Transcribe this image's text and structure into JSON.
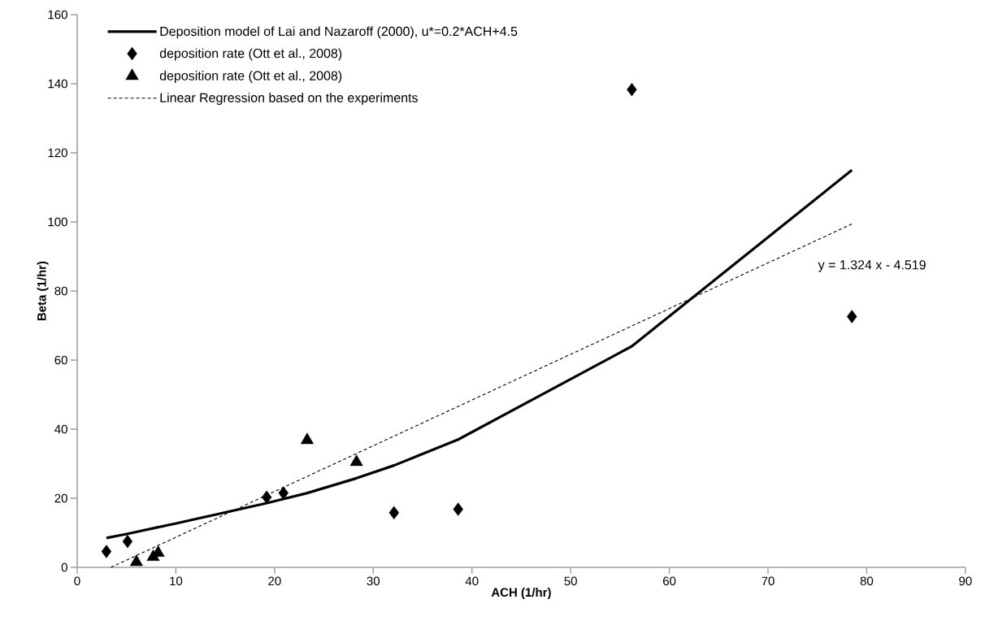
{
  "chart_data": {
    "type": "line",
    "xlabel": "ACH (1/hr)",
    "ylabel": "Beta (1/hr)",
    "xlim": [
      0,
      90
    ],
    "xticks": [
      0,
      10,
      20,
      30,
      40,
      50,
      60,
      70,
      80,
      90
    ],
    "ylim": [
      0,
      160
    ],
    "yticks": [
      0,
      20,
      40,
      60,
      80,
      100,
      120,
      140,
      160
    ],
    "legend": "top left",
    "annotations": [
      "y  = 1.324 x - 4.519"
    ],
    "series": [
      {
        "name": "Deposition model of Lai and Nazaroff (2000), u*=0.2*ACH+4.5",
        "color": "#000000",
        "marker": "none",
        "line_style": "solid",
        "x": [
          2.96,
          5.1,
          8,
          10,
          19.2,
          23.3,
          28.3,
          32.1,
          38.6,
          56.2,
          78.5
        ],
        "values": [
          8.5,
          9.7,
          11.5,
          12.7,
          18.6,
          21.5,
          25.8,
          29.5,
          37,
          64,
          115
        ]
      },
      {
        "name": "deposition rate (Ott et al., 2008)",
        "type": "scatter",
        "color": "#000000",
        "marker": "diamond",
        "x": [
          2.96,
          5.1,
          19.2,
          20.9,
          32.1,
          38.6,
          56.2,
          78.5
        ],
        "values": [
          4.6,
          7.5,
          20.3,
          21.5,
          15.8,
          16.8,
          138.3,
          72.6
        ]
      },
      {
        "name": "deposition rate (Ott et al., 2008)",
        "type": "scatter",
        "color": "#000000",
        "marker": "triangle",
        "x": [
          6.0,
          7.7,
          8.2,
          23.3,
          28.3
        ],
        "values": [
          1.5,
          3,
          4.2,
          36.8,
          30.5
        ]
      },
      {
        "name": "Linear Regression based on the experiments",
        "color": "#000000",
        "marker": "none",
        "line_style": "dashed",
        "x": [
          3.41,
          78.5
        ],
        "values": [
          0,
          99.4
        ]
      }
    ]
  }
}
